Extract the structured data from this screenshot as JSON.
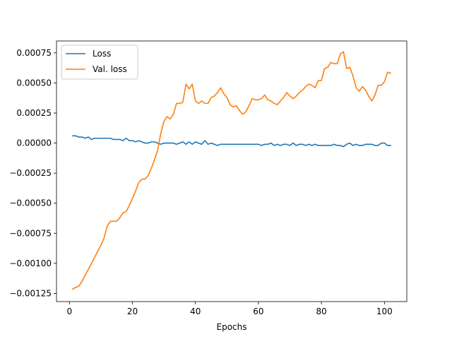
{
  "chart_data": {
    "type": "line",
    "title": "",
    "xlabel": "Epochs",
    "ylabel": "",
    "xlim": [
      -4.1,
      107.1
    ],
    "ylim": [
      -0.001318,
      0.000849
    ],
    "xticks": [
      0,
      20,
      40,
      60,
      80,
      100
    ],
    "xtick_labels": [
      "0",
      "20",
      "40",
      "60",
      "80",
      "100"
    ],
    "yticks": [
      -0.00125,
      -0.001,
      -0.00075,
      -0.0005,
      -0.00025,
      0,
      0.00025,
      0.0005,
      0.00075
    ],
    "ytick_labels": [
      "−0.00125",
      "−0.00100",
      "−0.00075",
      "−0.00050",
      "−0.00025",
      "0.00000",
      "0.00025",
      "0.00050",
      "0.00075"
    ],
    "grid": false,
    "legend_position": "upper-left",
    "series": [
      {
        "name": "Loss",
        "color": "#1f77b4",
        "x": [
          1,
          2,
          3,
          4,
          5,
          6,
          7,
          8,
          9,
          10,
          11,
          12,
          13,
          14,
          15,
          16,
          17,
          18,
          19,
          20,
          21,
          22,
          23,
          24,
          25,
          26,
          27,
          28,
          29,
          30,
          31,
          32,
          33,
          34,
          35,
          36,
          37,
          38,
          39,
          40,
          41,
          42,
          43,
          44,
          45,
          46,
          47,
          48,
          49,
          50,
          51,
          52,
          53,
          54,
          55,
          56,
          57,
          58,
          59,
          60,
          61,
          62,
          63,
          64,
          65,
          66,
          67,
          68,
          69,
          70,
          71,
          72,
          73,
          74,
          75,
          76,
          77,
          78,
          79,
          80,
          81,
          82,
          83,
          84,
          85,
          86,
          87,
          88,
          89,
          90,
          91,
          92,
          93,
          94,
          95,
          96,
          97,
          98,
          99,
          100,
          101,
          102
        ],
        "values": [
          6e-05,
          6e-05,
          5e-05,
          5e-05,
          4e-05,
          5e-05,
          3e-05,
          4e-05,
          4e-05,
          4e-05,
          4e-05,
          4e-05,
          4e-05,
          3e-05,
          3e-05,
          3e-05,
          2e-05,
          4e-05,
          2e-05,
          2e-05,
          1e-05,
          2e-05,
          1e-05,
          0.0,
          0.0,
          1e-05,
          1e-05,
          0.0,
          -1e-05,
          0.0,
          0.0,
          0.0,
          0.0,
          -1e-05,
          0.0,
          1e-05,
          -1e-05,
          1e-05,
          -1e-05,
          1e-05,
          0.0,
          -1e-05,
          2e-05,
          -1e-05,
          0.0,
          -1e-05,
          -2e-05,
          -1e-05,
          -1e-05,
          -1e-05,
          -1e-05,
          -1e-05,
          -1e-05,
          -1e-05,
          -1e-05,
          -1e-05,
          -1e-05,
          -1e-05,
          -1e-05,
          -1e-05,
          -2e-05,
          -1e-05,
          -1e-05,
          0.0,
          -2e-05,
          -1e-05,
          -2e-05,
          -1e-05,
          -1e-05,
          -2e-05,
          0.0,
          -2e-05,
          -1e-05,
          -1e-05,
          -2e-05,
          -1e-05,
          -2e-05,
          -1e-05,
          -2e-05,
          -2e-05,
          -2e-05,
          -2e-05,
          -2e-05,
          -1e-05,
          -2e-05,
          -2e-05,
          -3e-05,
          -1e-05,
          0.0,
          -2e-05,
          -1e-05,
          -2e-05,
          -2e-05,
          -1e-05,
          -1e-05,
          -1e-05,
          -2e-05,
          -2e-05,
          0.0,
          0.0,
          -2e-05,
          -2e-05
        ]
      },
      {
        "name": "Val. loss",
        "color": "#ff7f0e",
        "x": [
          1,
          2,
          3,
          4,
          5,
          6,
          7,
          8,
          9,
          10,
          11,
          12,
          13,
          14,
          15,
          16,
          17,
          18,
          19,
          20,
          21,
          22,
          23,
          24,
          25,
          26,
          27,
          28,
          29,
          30,
          31,
          32,
          33,
          34,
          35,
          36,
          37,
          38,
          39,
          40,
          41,
          42,
          43,
          44,
          45,
          46,
          47,
          48,
          49,
          50,
          51,
          52,
          53,
          54,
          55,
          56,
          57,
          58,
          59,
          60,
          61,
          62,
          63,
          64,
          65,
          66,
          67,
          68,
          69,
          70,
          71,
          72,
          73,
          74,
          75,
          76,
          77,
          78,
          79,
          80,
          81,
          82,
          83,
          84,
          85,
          86,
          87,
          88,
          89,
          90,
          91,
          92,
          93,
          94,
          95,
          96,
          97,
          98,
          99,
          100,
          101,
          102
        ],
        "values": [
          -0.001215,
          -0.0012,
          -0.00119,
          -0.00115,
          -0.0011,
          -0.00105,
          -0.001,
          -0.00095,
          -0.0009,
          -0.00085,
          -0.00079,
          -0.00069,
          -0.00065,
          -0.00065,
          -0.00065,
          -0.00062,
          -0.00058,
          -0.00057,
          -0.00052,
          -0.00046,
          -0.0004,
          -0.00033,
          -0.0003,
          -0.0003,
          -0.00027,
          -0.00021,
          -0.00014,
          -6e-05,
          8e-05,
          0.00018,
          0.00022,
          0.0002,
          0.00024,
          0.00033,
          0.00033,
          0.00034,
          0.00049,
          0.00045,
          0.00049,
          0.00035,
          0.00033,
          0.00035,
          0.00033,
          0.00033,
          0.00038,
          0.00039,
          0.00042,
          0.00046,
          0.00041,
          0.00038,
          0.00032,
          0.0003,
          0.00031,
          0.00027,
          0.00024,
          0.00026,
          0.00031,
          0.00037,
          0.00036,
          0.00036,
          0.00037,
          0.0004,
          0.00036,
          0.00035,
          0.00033,
          0.00032,
          0.00035,
          0.00038,
          0.00042,
          0.00039,
          0.00037,
          0.00039,
          0.00042,
          0.00044,
          0.00047,
          0.00049,
          0.00048,
          0.00046,
          0.00052,
          0.00052,
          0.00062,
          0.00063,
          0.00067,
          0.00066,
          0.00066,
          0.00074,
          0.00076,
          0.00062,
          0.00063,
          0.00056,
          0.00046,
          0.00043,
          0.00047,
          0.00044,
          0.00039,
          0.00035,
          0.0004,
          0.00048,
          0.00048,
          0.00051,
          0.00059,
          0.00058
        ]
      }
    ]
  }
}
